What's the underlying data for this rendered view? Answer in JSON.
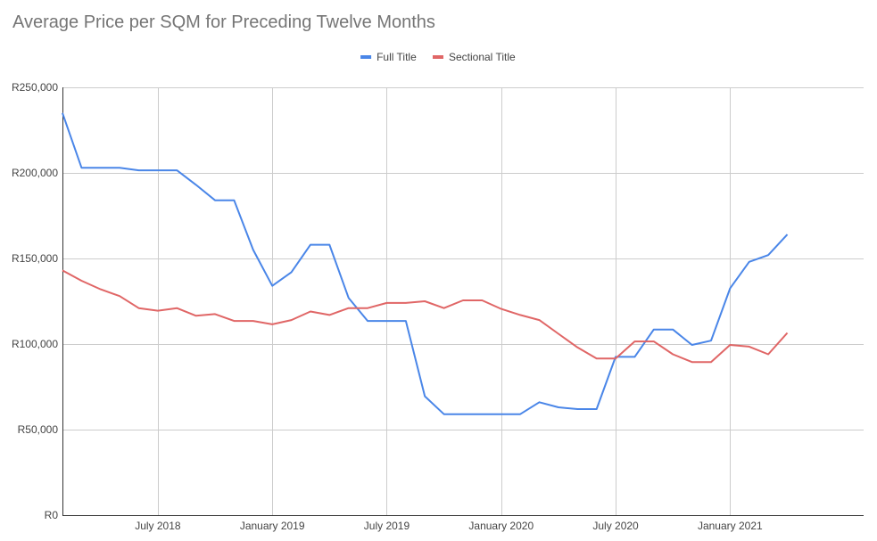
{
  "chart_data": {
    "type": "line",
    "title": "Average Price per SQM for Preceding Twelve Months",
    "xlabel": "",
    "ylabel": "",
    "legend_position": "top",
    "grid": true,
    "ylim": [
      0,
      250000
    ],
    "y_ticks": [
      0,
      50000,
      100000,
      150000,
      200000,
      250000
    ],
    "y_tick_labels": [
      "R0",
      "R50,000",
      "R100,000",
      "R150,000",
      "R200,000",
      "R250,000"
    ],
    "x_start": "2018-02",
    "x_end": "2021-08",
    "x_ticks": [
      "2018-07",
      "2019-01",
      "2019-07",
      "2020-01",
      "2020-07",
      "2021-01"
    ],
    "x_tick_labels": [
      "July 2018",
      "January 2019",
      "July 2019",
      "January 2020",
      "July 2020",
      "January 2021"
    ],
    "x": [
      "2018-02",
      "2018-03",
      "2018-04",
      "2018-05",
      "2018-06",
      "2018-07",
      "2018-08",
      "2018-09",
      "2018-10",
      "2018-11",
      "2018-12",
      "2019-01",
      "2019-02",
      "2019-03",
      "2019-04",
      "2019-05",
      "2019-06",
      "2019-07",
      "2019-08",
      "2019-09",
      "2019-10",
      "2019-11",
      "2019-12",
      "2020-01",
      "2020-02",
      "2020-03",
      "2020-04",
      "2020-05",
      "2020-06",
      "2020-07",
      "2020-08",
      "2020-09",
      "2020-10",
      "2020-11",
      "2020-12",
      "2021-01",
      "2021-02",
      "2021-03",
      "2021-04"
    ],
    "series": [
      {
        "name": "Full Title",
        "color": "#4a86e8",
        "values": [
          235000,
          203000,
          203000,
          203000,
          201500,
          201500,
          201500,
          193000,
          184000,
          184000,
          155000,
          134000,
          142000,
          158000,
          158000,
          127000,
          113500,
          113500,
          113500,
          69500,
          59000,
          59000,
          59000,
          59000,
          59000,
          66000,
          63000,
          62000,
          62000,
          92500,
          92500,
          108500,
          108500,
          99500,
          102000,
          132500,
          148000,
          152000,
          164000
        ]
      },
      {
        "name": "Sectional Title",
        "color": "#e06666",
        "values": [
          143000,
          137000,
          132000,
          128000,
          121000,
          119500,
          121000,
          116500,
          117500,
          113500,
          113500,
          111500,
          114000,
          119000,
          117000,
          121000,
          121000,
          124000,
          124000,
          125000,
          121000,
          125500,
          125500,
          120500,
          117000,
          114000,
          106000,
          98000,
          91500,
          91500,
          101500,
          101500,
          94000,
          89500,
          89500,
          99500,
          98500,
          94000,
          106500
        ]
      }
    ]
  }
}
